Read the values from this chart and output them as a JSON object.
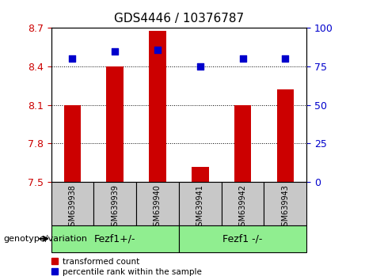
{
  "title": "GDS4446 / 10376787",
  "samples": [
    "GSM639938",
    "GSM639939",
    "GSM639940",
    "GSM639941",
    "GSM639942",
    "GSM639943"
  ],
  "transformed_counts": [
    8.1,
    8.4,
    8.68,
    7.62,
    8.1,
    8.22
  ],
  "percentile_ranks": [
    80,
    85,
    86,
    75,
    80,
    80
  ],
  "ylim_left": [
    7.5,
    8.7
  ],
  "ylim_right": [
    0,
    100
  ],
  "yticks_left": [
    7.5,
    7.8,
    8.1,
    8.4,
    8.7
  ],
  "yticks_right": [
    0,
    25,
    50,
    75,
    100
  ],
  "group1_label": "Fezf1+/-",
  "group2_label": "Fezf1 -/-",
  "group_color": "#90EE90",
  "bar_color": "#CC0000",
  "dot_color": "#0000CC",
  "bar_bottom": 7.5,
  "bar_width": 0.4,
  "legend_red_label": "transformed count",
  "legend_blue_label": "percentile rank within the sample",
  "tick_label_color_left": "#CC0000",
  "tick_label_color_right": "#0000CC",
  "genotype_label": "genotype/variation"
}
